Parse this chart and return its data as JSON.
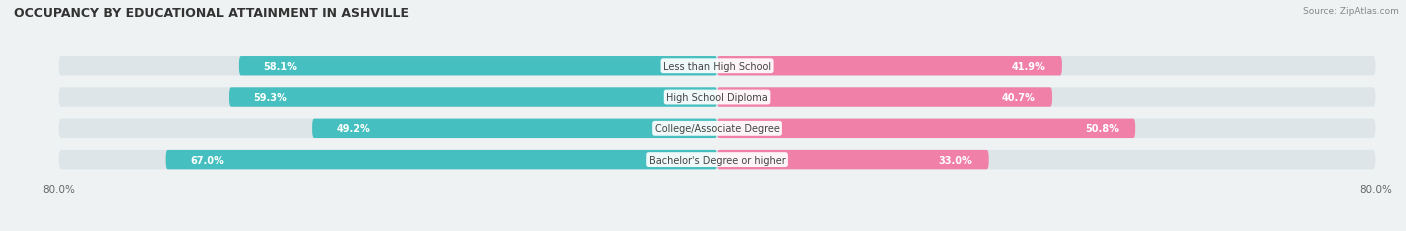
{
  "title": "OCCUPANCY BY EDUCATIONAL ATTAINMENT IN ASHVILLE",
  "source": "Source: ZipAtlas.com",
  "categories": [
    "Less than High School",
    "High School Diploma",
    "College/Associate Degree",
    "Bachelor's Degree or higher"
  ],
  "owner_values": [
    58.1,
    59.3,
    49.2,
    67.0
  ],
  "renter_values": [
    41.9,
    40.7,
    50.8,
    33.0
  ],
  "owner_color": "#45BFBF",
  "renter_color": "#F080A8",
  "background_color": "#eef2f3",
  "bar_bg_color": "#dde5e8",
  "label_color": "#ffffff",
  "cat_label_color": "#444444",
  "x_range": 80.0,
  "title_fontsize": 9,
  "value_fontsize": 7,
  "cat_fontsize": 7,
  "axis_fontsize": 7.5,
  "bar_height": 0.62,
  "bar_gap": 0.12
}
